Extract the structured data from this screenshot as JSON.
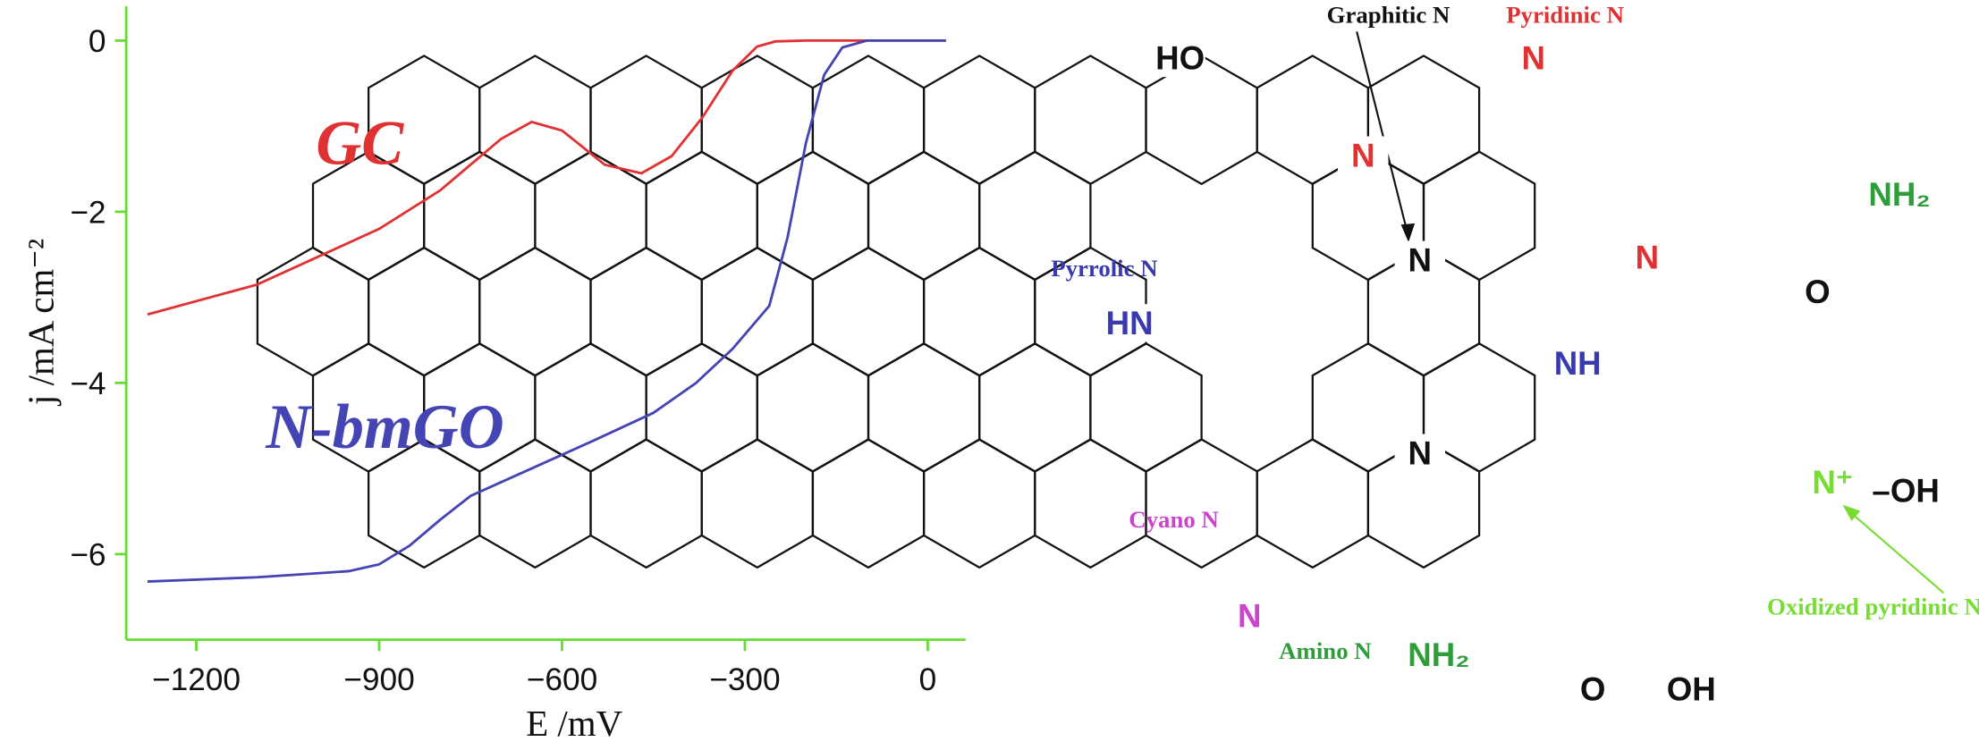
{
  "chart_data": {
    "type": "line",
    "x_label": "E /mV",
    "y_label": "j /mA cm⁻²",
    "xlim": [
      -1315,
      62
    ],
    "ylim": [
      -7,
      0.4
    ],
    "xticks": [
      {
        "value": -1200,
        "label": "−1200"
      },
      {
        "value": -900,
        "label": "−900"
      },
      {
        "value": -600,
        "label": "−600"
      },
      {
        "value": -300,
        "label": "−300"
      },
      0
    ],
    "yticks": [
      0,
      {
        "value": -2,
        "label": "−2"
      },
      {
        "value": -4,
        "label": "−4"
      },
      {
        "value": -6,
        "label": "−6"
      }
    ],
    "axis_color": "#66dd33",
    "series": [
      {
        "name": "GC",
        "color": "#e03232",
        "x": [
          -1280,
          -1100,
          -900,
          -800,
          -700,
          -650,
          -600,
          -530,
          -470,
          -420,
          -370,
          -320,
          -280,
          -250,
          -200,
          30
        ],
        "values": [
          -3.2,
          -2.85,
          -2.2,
          -1.75,
          -1.15,
          -0.95,
          -1.05,
          -1.45,
          -1.55,
          -1.35,
          -0.9,
          -0.35,
          -0.07,
          -0.01,
          0,
          0
        ]
      },
      {
        "name": "N-bmGO",
        "color": "#4444b4",
        "x": [
          -1280,
          -1100,
          -950,
          -900,
          -850,
          -800,
          -750,
          -650,
          -550,
          -450,
          -380,
          -320,
          -260,
          -230,
          -200,
          -170,
          -140,
          -100,
          30
        ],
        "values": [
          -6.32,
          -6.27,
          -6.2,
          -6.12,
          -5.9,
          -5.6,
          -5.32,
          -5.0,
          -4.68,
          -4.35,
          -4.0,
          -3.6,
          -3.1,
          -2.3,
          -1.2,
          -0.4,
          -0.08,
          0,
          0
        ]
      }
    ]
  },
  "structure": {
    "labels": [
      {
        "text": "Graphitic N",
        "color": "#111111"
      },
      {
        "text": "Pyridinic N",
        "color": "#e03232"
      },
      {
        "text": "Pyrrolic N",
        "color": "#3a3ab0"
      },
      {
        "text": "Cyano N",
        "color": "#cc44cc"
      },
      {
        "text": "Amino N",
        "color": "#2e9e3a"
      },
      {
        "text": "Oxidized pyridinic N",
        "color": "#77dd33"
      }
    ],
    "atoms": [
      {
        "text": "HO",
        "color": "#111111"
      },
      {
        "text": "N",
        "color": "#e03232"
      },
      {
        "text": "N",
        "color": "#e03232"
      },
      {
        "text": "NH₂",
        "color": "#2e9e3a"
      },
      {
        "text": "N",
        "color": "#111111"
      },
      {
        "text": "N",
        "color": "#e03232"
      },
      {
        "text": "O",
        "color": "#111111"
      },
      {
        "text": "HN",
        "color": "#3a3ab0"
      },
      {
        "text": "NH",
        "color": "#3a3ab0"
      },
      {
        "text": "N",
        "color": "#111111"
      },
      {
        "text": "N⁺",
        "color": "#77dd33"
      },
      {
        "text": "–OH",
        "color": "#111111"
      },
      {
        "text": "N",
        "color": "#cc44cc"
      },
      {
        "text": "NH₂",
        "color": "#2e9e3a"
      },
      {
        "text": "O",
        "color": "#111111"
      },
      {
        "text": "OH",
        "color": "#111111"
      }
    ]
  }
}
